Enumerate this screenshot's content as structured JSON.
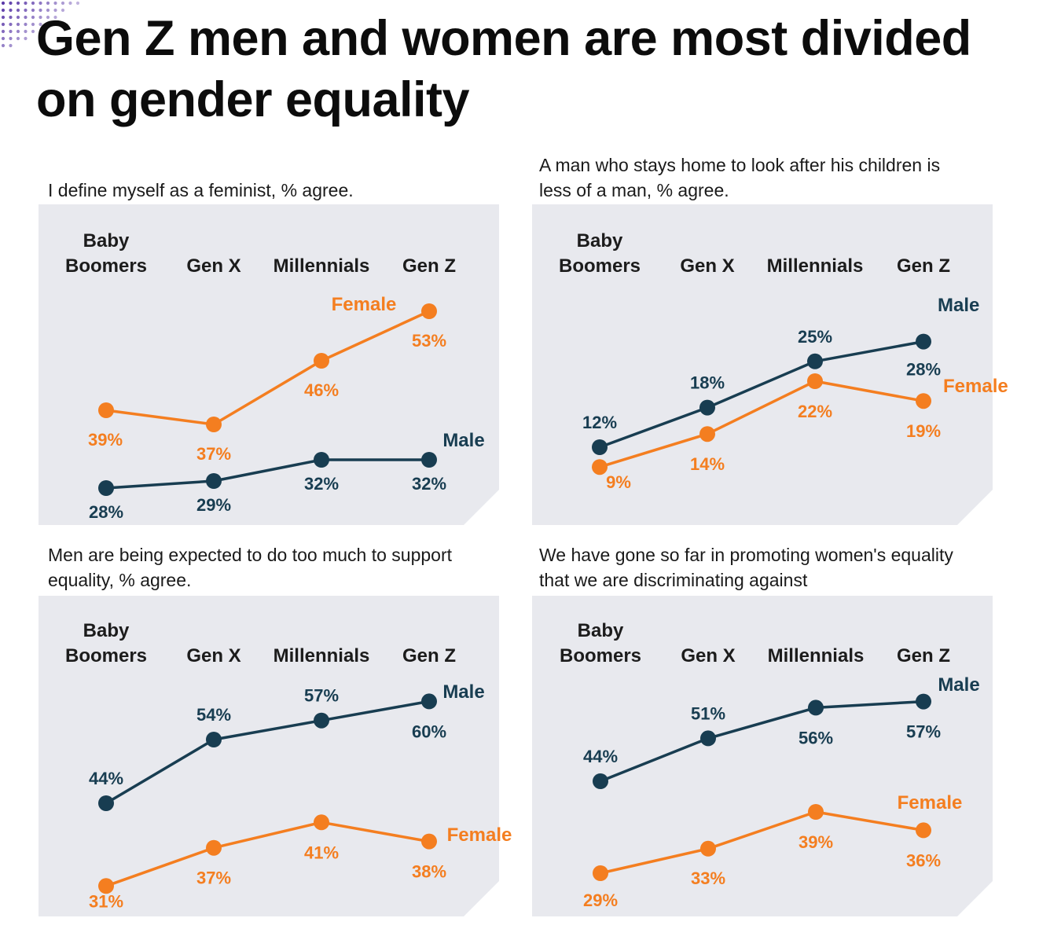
{
  "title": "Gen Z men and women are most divided on gender equality",
  "colors": {
    "male": "#183d51",
    "female": "#f47e20",
    "panel": "#e8e9ee",
    "dots": "#5b3aa8"
  },
  "categories_header": [
    [
      "Baby",
      "Boomers"
    ],
    [
      "Gen X"
    ],
    [
      "Millennials"
    ],
    [
      "Gen Z"
    ]
  ],
  "chart_data": [
    {
      "type": "line",
      "title": "I define myself as a feminist, % agree.",
      "categories": [
        "Baby Boomers",
        "Gen X",
        "Millennials",
        "Gen Z"
      ],
      "series": [
        {
          "name": "Female",
          "values": [
            39,
            37,
            46,
            53
          ]
        },
        {
          "name": "Male",
          "values": [
            28,
            29,
            32,
            32
          ]
        }
      ]
    },
    {
      "type": "line",
      "title": "A man who stays home to look after his children is less of a man, % agree.",
      "categories": [
        "Baby Boomers",
        "Gen X",
        "Millennials",
        "Gen Z"
      ],
      "series": [
        {
          "name": "Male",
          "values": [
            12,
            18,
            25,
            28
          ]
        },
        {
          "name": "Female",
          "values": [
            9,
            14,
            22,
            19
          ]
        }
      ]
    },
    {
      "type": "line",
      "title": "Men are being expected to do too much to support equality, % agree.",
      "categories": [
        "Baby Boomers",
        "Gen X",
        "Millennials",
        "Gen Z"
      ],
      "series": [
        {
          "name": "Male",
          "values": [
            44,
            54,
            57,
            60
          ]
        },
        {
          "name": "Female",
          "values": [
            31,
            37,
            41,
            38
          ]
        }
      ]
    },
    {
      "type": "line",
      "title": "We have gone so far in promoting women's equality that we are discriminating against",
      "categories": [
        "Baby Boomers",
        "Gen X",
        "Millennials",
        "Gen Z"
      ],
      "series": [
        {
          "name": "Male",
          "values": [
            44,
            51,
            56,
            57
          ]
        },
        {
          "name": "Female",
          "values": [
            29,
            33,
            39,
            36
          ]
        }
      ]
    }
  ]
}
